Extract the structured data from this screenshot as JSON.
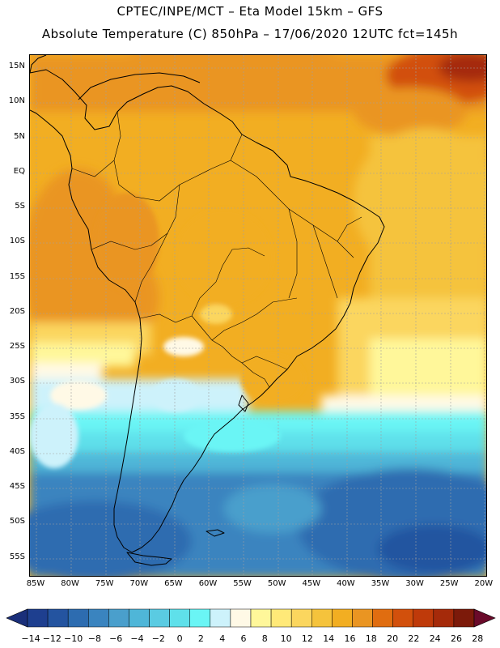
{
  "header": {
    "line1": "CPTEC/INPE/MCT –  Eta Model 15km – GFS",
    "line2": "Absolute Temperature (C) 850hPa – 17/06/2020 12UTC fct=145h"
  },
  "map": {
    "lat_labels": [
      "15N",
      "10N",
      "5N",
      "EQ",
      "5S",
      "10S",
      "15S",
      "20S",
      "25S",
      "30S",
      "35S",
      "40S",
      "45S",
      "50S",
      "55S"
    ],
    "lon_labels": [
      "85W",
      "80W",
      "75W",
      "70W",
      "65W",
      "60W",
      "55W",
      "50W",
      "45W",
      "40W",
      "35W",
      "30W",
      "25W",
      "20W"
    ],
    "extent": {
      "west": -86,
      "east": -19.5,
      "north": 16,
      "south": -58
    }
  },
  "colorbar": {
    "labels": [
      "-14",
      "-12",
      "-10",
      "-8",
      "-6",
      "-4",
      "-2",
      "0",
      "2",
      "4",
      "6",
      "8",
      "10",
      "12",
      "14",
      "16",
      "18",
      "20",
      "22",
      "24",
      "26",
      "28"
    ],
    "colors": [
      "#1e3f8f",
      "#2454a0",
      "#2d6cb0",
      "#3a84bf",
      "#4a9fcc",
      "#4fb6d8",
      "#5acbe2",
      "#5fe0ea",
      "#6af5f5",
      "#cdf2fb",
      "#fff9e6",
      "#fff79a",
      "#ffe978",
      "#fbd65e",
      "#f5c33c",
      "#f2ae22",
      "#ea9522",
      "#e06d10",
      "#d2500c",
      "#bf3a0a",
      "#a52a0a",
      "#7c1a0a"
    ],
    "under_color": "#1a2f7a",
    "over_color": "#6a0a2a"
  }
}
